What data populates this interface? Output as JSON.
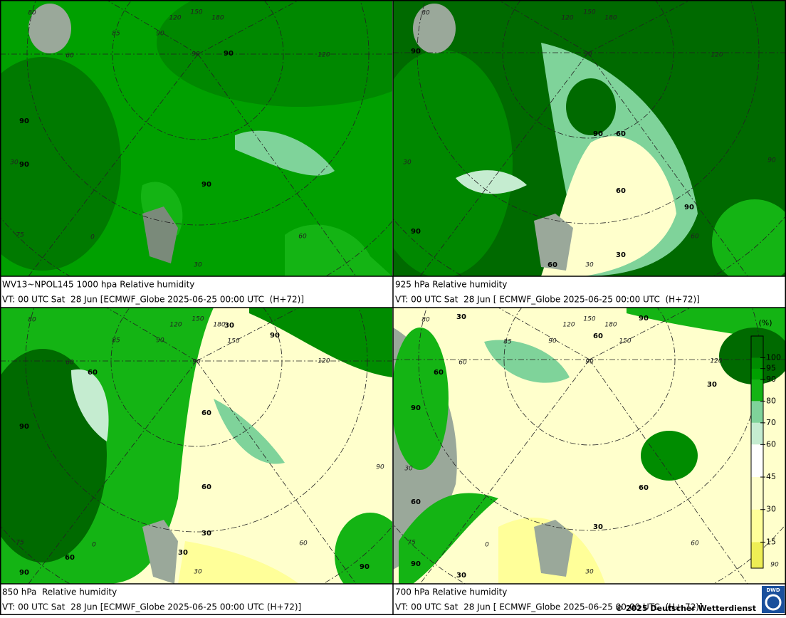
{
  "panels": [
    {
      "title": "WV13~NPOL145 1000 hpa Relative humidity",
      "valid": "VT: 00 UTC Sat  28 Jun [ECMWF_Globe 2025-06-25 00:00 UTC  (H+72)]",
      "contour_labels": [
        "90",
        "90",
        "90",
        "90"
      ],
      "grid_labels": [
        "80",
        "85",
        "90",
        "120",
        "150",
        "180",
        "90",
        "120",
        "60",
        "30",
        "0",
        "75",
        "60",
        "30"
      ]
    },
    {
      "title": "925 hPa Relative humidity",
      "valid": "VT: 00 UTC Sat  28 Jun [ ECMWF_Globe 2025-06-25 00:00 UTC  (H+72)]",
      "contour_labels": [
        "90",
        "90",
        "60",
        "60",
        "90",
        "90",
        "60",
        "30"
      ],
      "grid_labels": [
        "80",
        "150",
        "180",
        "120",
        "90",
        "120",
        "30",
        "60",
        "90",
        "30"
      ]
    },
    {
      "title": "850 hPa  Relative humidity",
      "valid": "VT: 00 UTC Sat  28 Jun [ECMWF_Globe 2025-06-25 00:00 UTC (H+72)]",
      "contour_labels": [
        "30",
        "90",
        "60",
        "60",
        "90",
        "60",
        "30",
        "60",
        "30",
        "90",
        "90"
      ],
      "grid_labels": [
        "80",
        "120",
        "150",
        "180",
        "150",
        "85",
        "90",
        "90",
        "120",
        "60",
        "75",
        "0",
        "60",
        "30",
        "90"
      ]
    },
    {
      "title": "700 hPa Relative humidity",
      "valid": "VT: 00 UTC Sat  28 Jun [ ECMWF_Globe 2025-06-25 00:00 UTC  (H+ 72)]",
      "contour_labels": [
        "30",
        "90",
        "60",
        "60",
        "90",
        "30",
        "60",
        "60",
        "30",
        "30",
        "90"
      ],
      "grid_labels": [
        "80",
        "120",
        "150",
        "180",
        "150",
        "85",
        "90",
        "90",
        "120",
        "60",
        "30",
        "75",
        "0",
        "60",
        "30",
        "90"
      ]
    }
  ],
  "legend": {
    "unit": "(%)",
    "levels": [
      100,
      95,
      90,
      80,
      70,
      60,
      45,
      30,
      15
    ],
    "range": [
      3,
      110
    ],
    "colors": [
      "#006a00",
      "#008c00",
      "#00a000",
      "#14b414",
      "#7fd39a",
      "#c5ecd0",
      "#ffffff",
      "#ffffcc",
      "#ffff99",
      "#eeee55"
    ]
  },
  "footer": "© 2025 Deutscher Wetterdienst",
  "logo": "DWD"
}
